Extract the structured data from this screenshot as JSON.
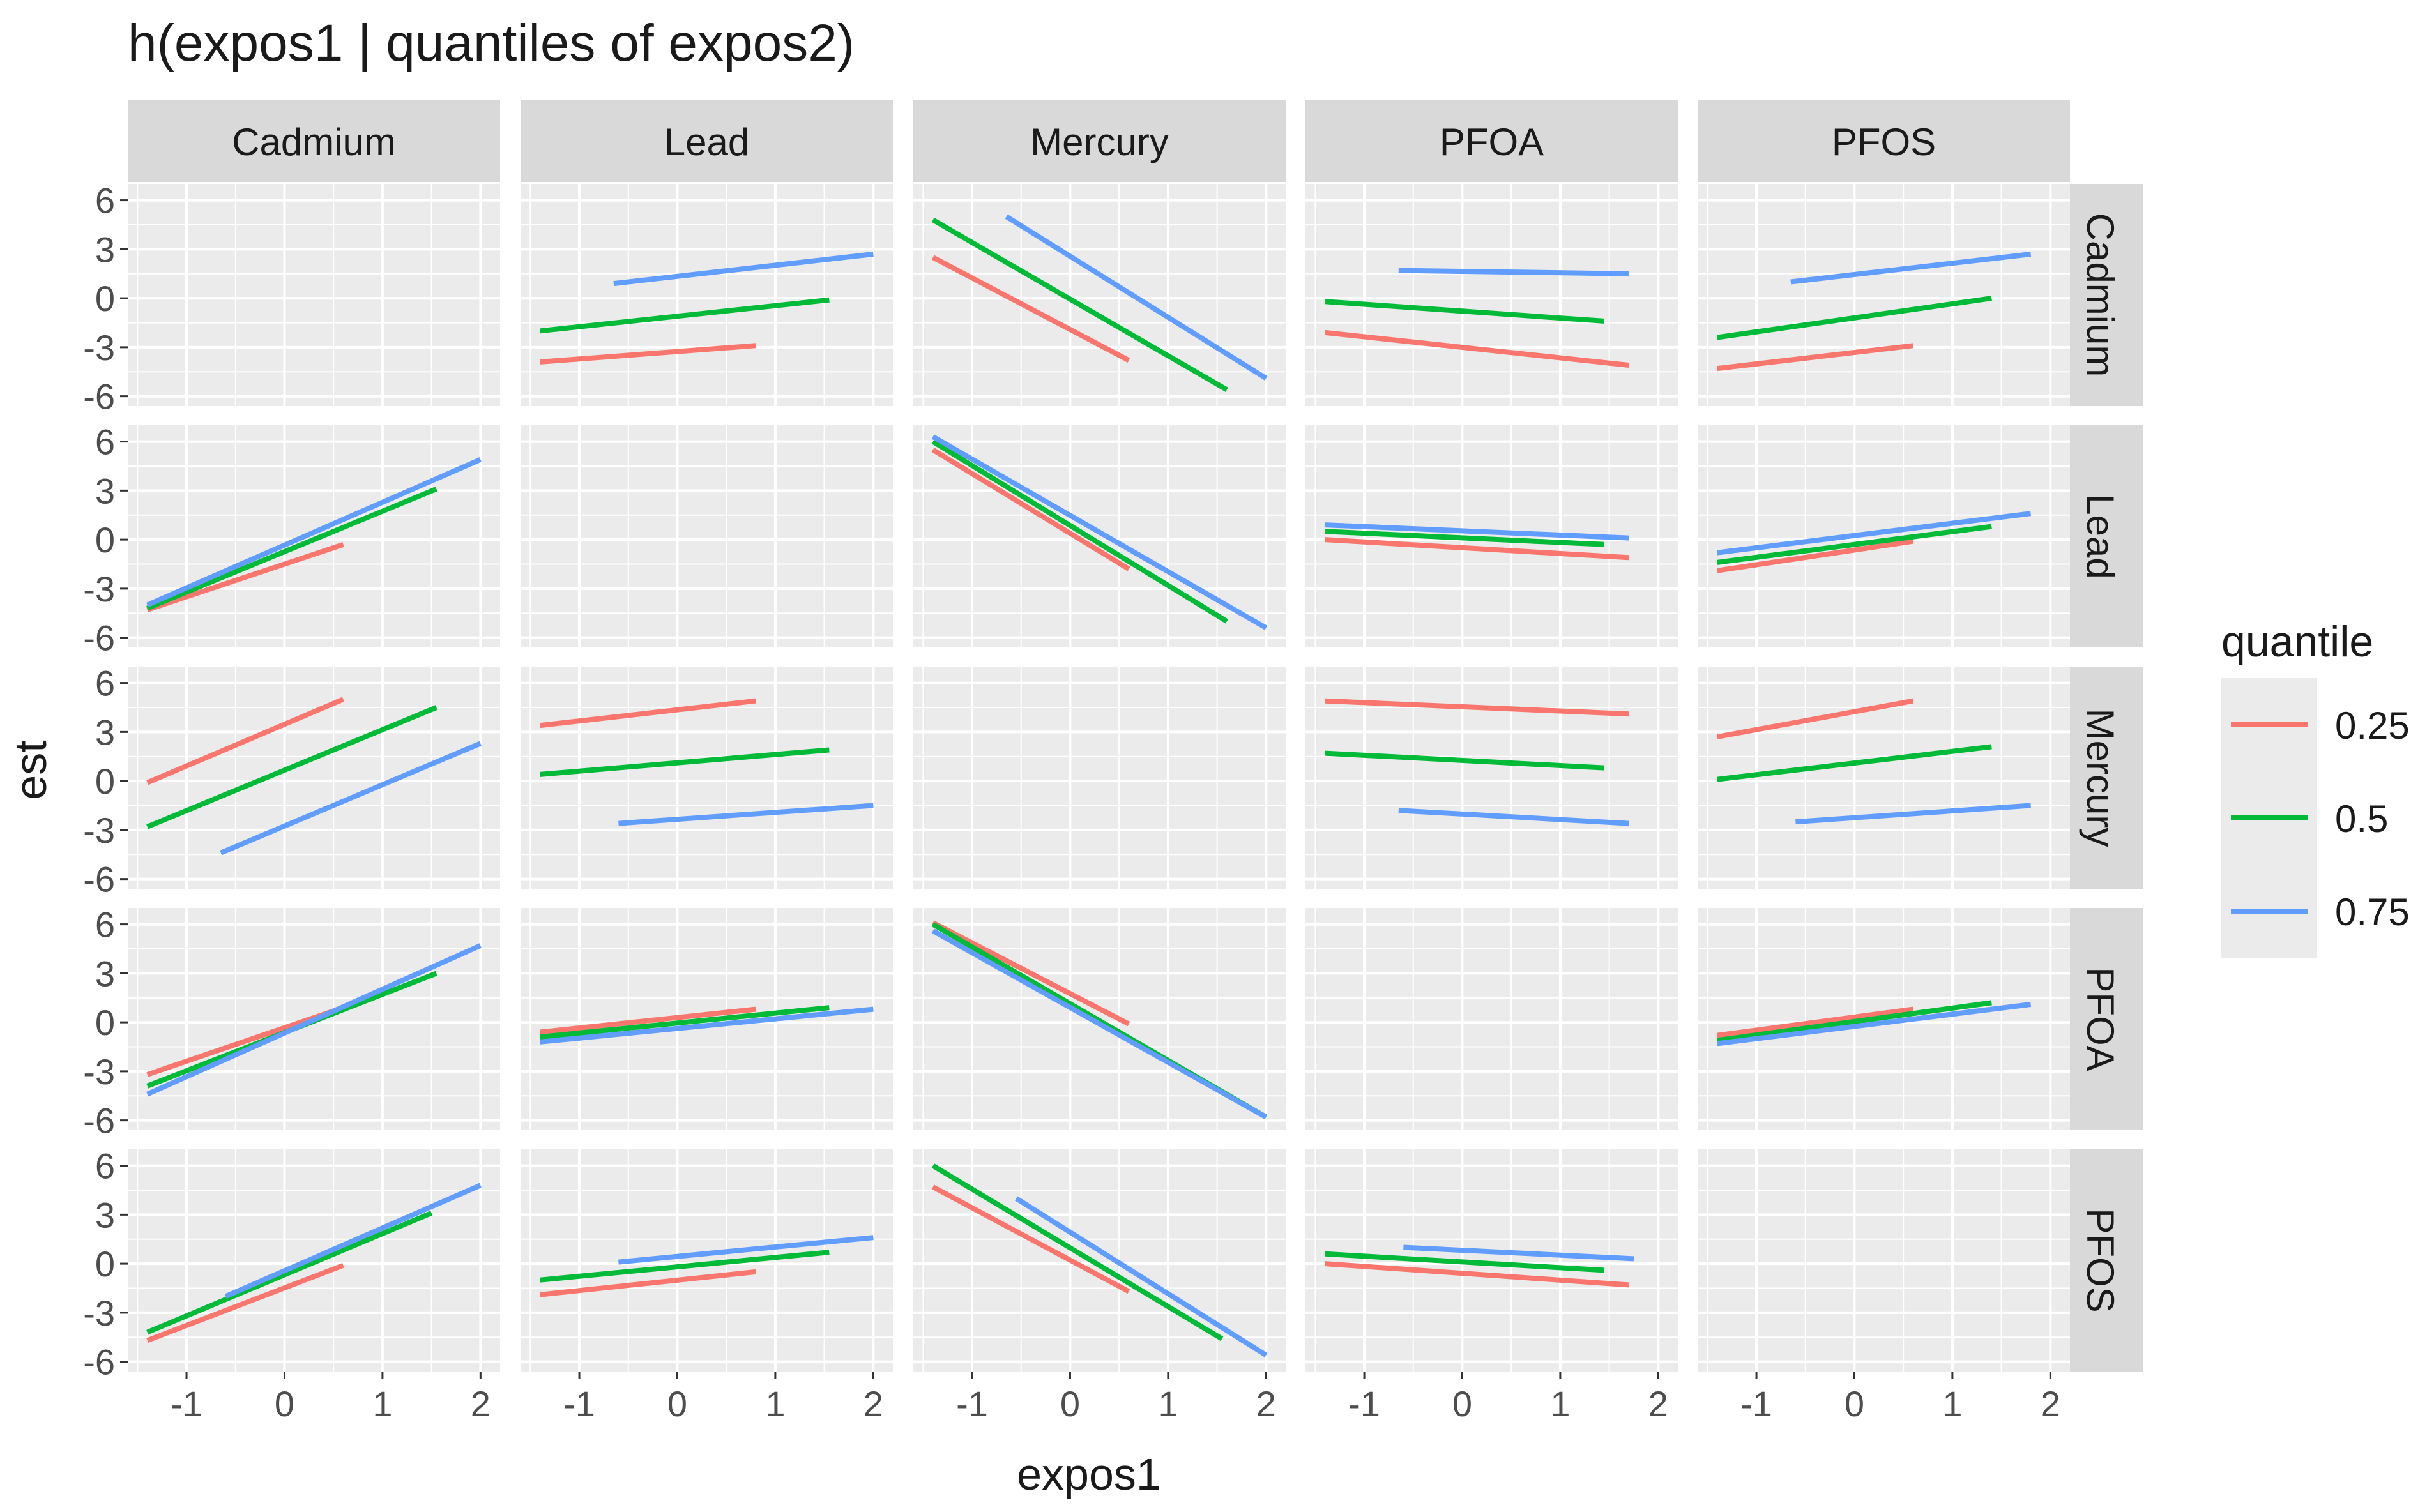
{
  "colors": {
    "panel_bg": "#EBEBEB",
    "grid_major": "#FFFFFF",
    "strip_bg": "#D9D9D9",
    "text": "#1A1A1A",
    "tick_text": "#4D4D4D",
    "q025": "#F8766D",
    "q050": "#00BA38",
    "q075": "#619CFF"
  },
  "chart_data": {
    "type": "line",
    "title": "h(expos1 | quantiles of expos2)",
    "xlabel": "expos1",
    "ylabel": "est",
    "xlim": [
      -1.6,
      2.2
    ],
    "ylim": [
      -6.6,
      7.0
    ],
    "x_ticks": [
      -1,
      0,
      1,
      2
    ],
    "x_tick_labels": [
      "-1",
      "0",
      "1",
      "2"
    ],
    "y_ticks": [
      -6,
      -3,
      0,
      3,
      6
    ],
    "y_tick_labels": [
      "-6",
      "-3",
      "0",
      "3",
      "6"
    ],
    "col_facets": [
      "Cadmium",
      "Lead",
      "Mercury",
      "PFOA",
      "PFOS"
    ],
    "row_facets": [
      "Cadmium",
      "Lead",
      "Mercury",
      "PFOA",
      "PFOS"
    ],
    "legend": {
      "title": "quantile",
      "position": "right",
      "entries": [
        {
          "label": "0.25",
          "color_key": "q025"
        },
        {
          "label": "0.5",
          "color_key": "q050"
        },
        {
          "label": "0.75",
          "color_key": "q075"
        }
      ]
    },
    "panels": [
      {
        "row": "Cadmium",
        "col": "Lead",
        "series": [
          {
            "quantile": "0.25",
            "x": [
              -1.4,
              0.8
            ],
            "y": [
              -3.9,
              -2.9
            ]
          },
          {
            "quantile": "0.5",
            "x": [
              -1.4,
              1.55
            ],
            "y": [
              -2.0,
              -0.1
            ]
          },
          {
            "quantile": "0.75",
            "x": [
              -0.65,
              2.0
            ],
            "y": [
              0.9,
              2.7
            ]
          }
        ]
      },
      {
        "row": "Cadmium",
        "col": "Mercury",
        "series": [
          {
            "quantile": "0.25",
            "x": [
              -1.4,
              0.6
            ],
            "y": [
              2.5,
              -3.8
            ]
          },
          {
            "quantile": "0.5",
            "x": [
              -1.4,
              1.6
            ],
            "y": [
              4.8,
              -5.6
            ]
          },
          {
            "quantile": "0.75",
            "x": [
              -0.65,
              2.0
            ],
            "y": [
              5.0,
              -4.9
            ]
          }
        ]
      },
      {
        "row": "Cadmium",
        "col": "PFOA",
        "series": [
          {
            "quantile": "0.25",
            "x": [
              -1.4,
              1.7
            ],
            "y": [
              -2.1,
              -4.1
            ]
          },
          {
            "quantile": "0.5",
            "x": [
              -1.4,
              1.45
            ],
            "y": [
              -0.2,
              -1.4
            ]
          },
          {
            "quantile": "0.75",
            "x": [
              -0.65,
              1.7
            ],
            "y": [
              1.7,
              1.5
            ]
          }
        ]
      },
      {
        "row": "Cadmium",
        "col": "PFOS",
        "series": [
          {
            "quantile": "0.25",
            "x": [
              -1.4,
              0.6
            ],
            "y": [
              -4.3,
              -2.9
            ]
          },
          {
            "quantile": "0.5",
            "x": [
              -1.4,
              1.4
            ],
            "y": [
              -2.4,
              0.0
            ]
          },
          {
            "quantile": "0.75",
            "x": [
              -0.65,
              1.8
            ],
            "y": [
              1.0,
              2.7
            ]
          }
        ]
      },
      {
        "row": "Lead",
        "col": "Cadmium",
        "series": [
          {
            "quantile": "0.25",
            "x": [
              -1.4,
              0.6
            ],
            "y": [
              -4.3,
              -0.3
            ]
          },
          {
            "quantile": "0.5",
            "x": [
              -1.4,
              1.55
            ],
            "y": [
              -4.2,
              3.1
            ]
          },
          {
            "quantile": "0.75",
            "x": [
              -1.4,
              2.0
            ],
            "y": [
              -4.0,
              4.9
            ]
          }
        ]
      },
      {
        "row": "Lead",
        "col": "Mercury",
        "series": [
          {
            "quantile": "0.25",
            "x": [
              -1.4,
              0.6
            ],
            "y": [
              5.5,
              -1.8
            ]
          },
          {
            "quantile": "0.5",
            "x": [
              -1.4,
              1.6
            ],
            "y": [
              6.0,
              -5.0
            ]
          },
          {
            "quantile": "0.75",
            "x": [
              -1.4,
              2.0
            ],
            "y": [
              6.3,
              -5.4
            ]
          }
        ]
      },
      {
        "row": "Lead",
        "col": "PFOA",
        "series": [
          {
            "quantile": "0.25",
            "x": [
              -1.4,
              1.7
            ],
            "y": [
              0.0,
              -1.1
            ]
          },
          {
            "quantile": "0.5",
            "x": [
              -1.4,
              1.45
            ],
            "y": [
              0.5,
              -0.3
            ]
          },
          {
            "quantile": "0.75",
            "x": [
              -1.4,
              1.7
            ],
            "y": [
              0.9,
              0.1
            ]
          }
        ]
      },
      {
        "row": "Lead",
        "col": "PFOS",
        "series": [
          {
            "quantile": "0.25",
            "x": [
              -1.4,
              0.6
            ],
            "y": [
              -1.9,
              -0.1
            ]
          },
          {
            "quantile": "0.5",
            "x": [
              -1.4,
              1.4
            ],
            "y": [
              -1.4,
              0.8
            ]
          },
          {
            "quantile": "0.75",
            "x": [
              -1.4,
              1.8
            ],
            "y": [
              -0.8,
              1.6
            ]
          }
        ]
      },
      {
        "row": "Mercury",
        "col": "Cadmium",
        "series": [
          {
            "quantile": "0.25",
            "x": [
              -1.4,
              0.6
            ],
            "y": [
              -0.1,
              5.0
            ]
          },
          {
            "quantile": "0.5",
            "x": [
              -1.4,
              1.55
            ],
            "y": [
              -2.8,
              4.5
            ]
          },
          {
            "quantile": "0.75",
            "x": [
              -0.65,
              2.0
            ],
            "y": [
              -4.4,
              2.3
            ]
          }
        ]
      },
      {
        "row": "Mercury",
        "col": "Lead",
        "series": [
          {
            "quantile": "0.25",
            "x": [
              -1.4,
              0.8
            ],
            "y": [
              3.4,
              4.9
            ]
          },
          {
            "quantile": "0.5",
            "x": [
              -1.4,
              1.55
            ],
            "y": [
              0.4,
              1.9
            ]
          },
          {
            "quantile": "0.75",
            "x": [
              -0.6,
              2.0
            ],
            "y": [
              -2.6,
              -1.5
            ]
          }
        ]
      },
      {
        "row": "Mercury",
        "col": "PFOA",
        "series": [
          {
            "quantile": "0.25",
            "x": [
              -1.4,
              1.7
            ],
            "y": [
              4.9,
              4.1
            ]
          },
          {
            "quantile": "0.5",
            "x": [
              -1.4,
              1.45
            ],
            "y": [
              1.7,
              0.8
            ]
          },
          {
            "quantile": "0.75",
            "x": [
              -0.65,
              1.7
            ],
            "y": [
              -1.8,
              -2.6
            ]
          }
        ]
      },
      {
        "row": "Mercury",
        "col": "PFOS",
        "series": [
          {
            "quantile": "0.25",
            "x": [
              -1.4,
              0.6
            ],
            "y": [
              2.7,
              4.9
            ]
          },
          {
            "quantile": "0.5",
            "x": [
              -1.4,
              1.4
            ],
            "y": [
              0.1,
              2.1
            ]
          },
          {
            "quantile": "0.75",
            "x": [
              -0.6,
              1.8
            ],
            "y": [
              -2.5,
              -1.5
            ]
          }
        ]
      },
      {
        "row": "PFOA",
        "col": "Cadmium",
        "series": [
          {
            "quantile": "0.25",
            "x": [
              -1.4,
              0.6
            ],
            "y": [
              -3.2,
              0.9
            ]
          },
          {
            "quantile": "0.5",
            "x": [
              -1.4,
              1.55
            ],
            "y": [
              -3.9,
              3.0
            ]
          },
          {
            "quantile": "0.75",
            "x": [
              -1.4,
              2.0
            ],
            "y": [
              -4.4,
              4.7
            ]
          }
        ]
      },
      {
        "row": "PFOA",
        "col": "Lead",
        "series": [
          {
            "quantile": "0.25",
            "x": [
              -1.4,
              0.8
            ],
            "y": [
              -0.6,
              0.8
            ]
          },
          {
            "quantile": "0.5",
            "x": [
              -1.4,
              1.55
            ],
            "y": [
              -0.9,
              0.9
            ]
          },
          {
            "quantile": "0.75",
            "x": [
              -1.4,
              2.0
            ],
            "y": [
              -1.2,
              0.8
            ]
          }
        ]
      },
      {
        "row": "PFOA",
        "col": "Mercury",
        "series": [
          {
            "quantile": "0.25",
            "x": [
              -1.4,
              0.6
            ],
            "y": [
              6.1,
              -0.1
            ]
          },
          {
            "quantile": "0.5",
            "x": [
              -1.4,
              2.0
            ],
            "y": [
              6.0,
              -5.8
            ]
          },
          {
            "quantile": "0.75",
            "x": [
              -1.4,
              2.0
            ],
            "y": [
              5.6,
              -5.8
            ]
          }
        ]
      },
      {
        "row": "PFOA",
        "col": "PFOS",
        "series": [
          {
            "quantile": "0.25",
            "x": [
              -1.4,
              0.6
            ],
            "y": [
              -0.8,
              0.8
            ]
          },
          {
            "quantile": "0.5",
            "x": [
              -1.4,
              1.4
            ],
            "y": [
              -1.1,
              1.2
            ]
          },
          {
            "quantile": "0.75",
            "x": [
              -1.4,
              1.8
            ],
            "y": [
              -1.3,
              1.1
            ]
          }
        ]
      },
      {
        "row": "PFOS",
        "col": "Cadmium",
        "series": [
          {
            "quantile": "0.25",
            "x": [
              -1.4,
              0.6
            ],
            "y": [
              -4.7,
              -0.1
            ]
          },
          {
            "quantile": "0.5",
            "x": [
              -1.4,
              1.5
            ],
            "y": [
              -4.2,
              3.1
            ]
          },
          {
            "quantile": "0.75",
            "x": [
              -0.6,
              2.0
            ],
            "y": [
              -2.0,
              4.8
            ]
          }
        ]
      },
      {
        "row": "PFOS",
        "col": "Lead",
        "series": [
          {
            "quantile": "0.25",
            "x": [
              -1.4,
              0.8
            ],
            "y": [
              -1.9,
              -0.5
            ]
          },
          {
            "quantile": "0.5",
            "x": [
              -1.4,
              1.55
            ],
            "y": [
              -1.0,
              0.7
            ]
          },
          {
            "quantile": "0.75",
            "x": [
              -0.6,
              2.0
            ],
            "y": [
              0.1,
              1.6
            ]
          }
        ]
      },
      {
        "row": "PFOS",
        "col": "Mercury",
        "series": [
          {
            "quantile": "0.25",
            "x": [
              -1.4,
              0.6
            ],
            "y": [
              4.7,
              -1.7
            ]
          },
          {
            "quantile": "0.5",
            "x": [
              -1.4,
              1.55
            ],
            "y": [
              6.0,
              -4.6
            ]
          },
          {
            "quantile": "0.75",
            "x": [
              -0.55,
              2.0
            ],
            "y": [
              4.0,
              -5.6
            ]
          }
        ]
      },
      {
        "row": "PFOS",
        "col": "PFOA",
        "series": [
          {
            "quantile": "0.25",
            "x": [
              -1.4,
              1.7
            ],
            "y": [
              0.0,
              -1.3
            ]
          },
          {
            "quantile": "0.5",
            "x": [
              -1.4,
              1.45
            ],
            "y": [
              0.6,
              -0.4
            ]
          },
          {
            "quantile": "0.75",
            "x": [
              -0.6,
              1.75
            ],
            "y": [
              1.0,
              0.3
            ]
          }
        ]
      }
    ]
  }
}
